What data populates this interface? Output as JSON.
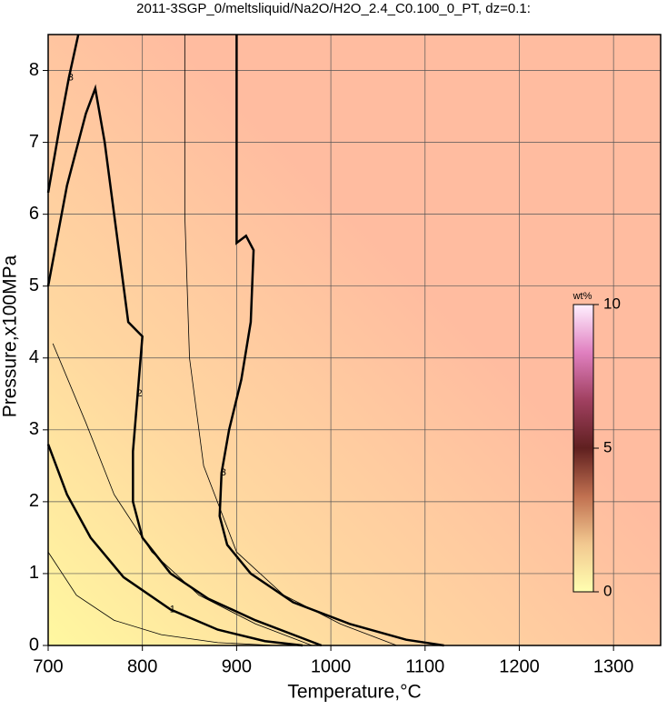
{
  "chart_data": {
    "type": "contour",
    "title": "2011-3SGP_0/meltsliquid/Na2O/H2O_2.4_C0.100_0_PT, dz=0.1:",
    "xlabel": "Temperature,°C",
    "ylabel": "Pressure,x100MPa",
    "xlim": [
      700,
      1350
    ],
    "ylim": [
      0,
      8.5
    ],
    "xticks": [
      700,
      800,
      900,
      1000,
      1100,
      1200,
      1300
    ],
    "yticks": [
      0,
      1,
      2,
      3,
      4,
      5,
      6,
      7,
      8
    ],
    "grid": true,
    "colorbar": {
      "label": "wt%",
      "lim": [
        0,
        10
      ],
      "ticks": [
        0,
        5,
        10
      ],
      "colors": [
        "#ffffb0",
        "#f2c890",
        "#c07050",
        "#602020",
        "#a04060",
        "#e080c0",
        "#fff0ff"
      ]
    },
    "contours": [
      {
        "level": 0.5,
        "x": [
          700,
          730,
          770,
          820,
          880,
          940
        ],
        "y": [
          1.3,
          0.7,
          0.35,
          0.15,
          0.04,
          0
        ]
      },
      {
        "level": 1,
        "x": [
          700,
          720,
          745,
          780,
          830,
          880,
          930,
          970
        ],
        "y": [
          2.8,
          2.1,
          1.5,
          0.95,
          0.5,
          0.22,
          0.06,
          0
        ]
      },
      {
        "level": 1.5,
        "x": [
          705,
          740,
          770,
          810,
          860,
          920,
          980
        ],
        "y": [
          4.2,
          3.1,
          2.1,
          1.3,
          0.7,
          0.3,
          0
        ]
      },
      {
        "level": 2,
        "x": [
          700,
          720,
          740,
          750,
          760,
          775,
          785,
          800,
          795,
          790,
          790,
          800,
          830,
          870,
          920,
          960,
          990
        ],
        "y": [
          5.0,
          6.4,
          7.4,
          7.75,
          7.0,
          5.5,
          4.5,
          4.3,
          3.5,
          2.7,
          2.0,
          1.5,
          1.0,
          0.65,
          0.35,
          0.15,
          0
        ]
      },
      {
        "level": 2.5,
        "x": [
          845,
          845,
          850,
          865,
          900,
          950,
          1010,
          1070
        ],
        "y": [
          8.5,
          6.0,
          4.0,
          2.5,
          1.3,
          0.7,
          0.3,
          0
        ]
      },
      {
        "level": 3,
        "x": [
          900,
          900,
          910,
          918,
          915,
          905,
          892,
          884,
          882,
          890,
          915,
          960,
          1020,
          1080,
          1120
        ],
        "y": [
          8.5,
          5.6,
          5.7,
          5.5,
          4.5,
          3.7,
          3.0,
          2.4,
          1.8,
          1.4,
          1.0,
          0.6,
          0.3,
          0.08,
          0
        ]
      },
      {
        "level": 3,
        "x": [
          700,
          712,
          722,
          732
        ],
        "y": [
          6.3,
          7.2,
          7.9,
          8.5
        ]
      }
    ]
  }
}
